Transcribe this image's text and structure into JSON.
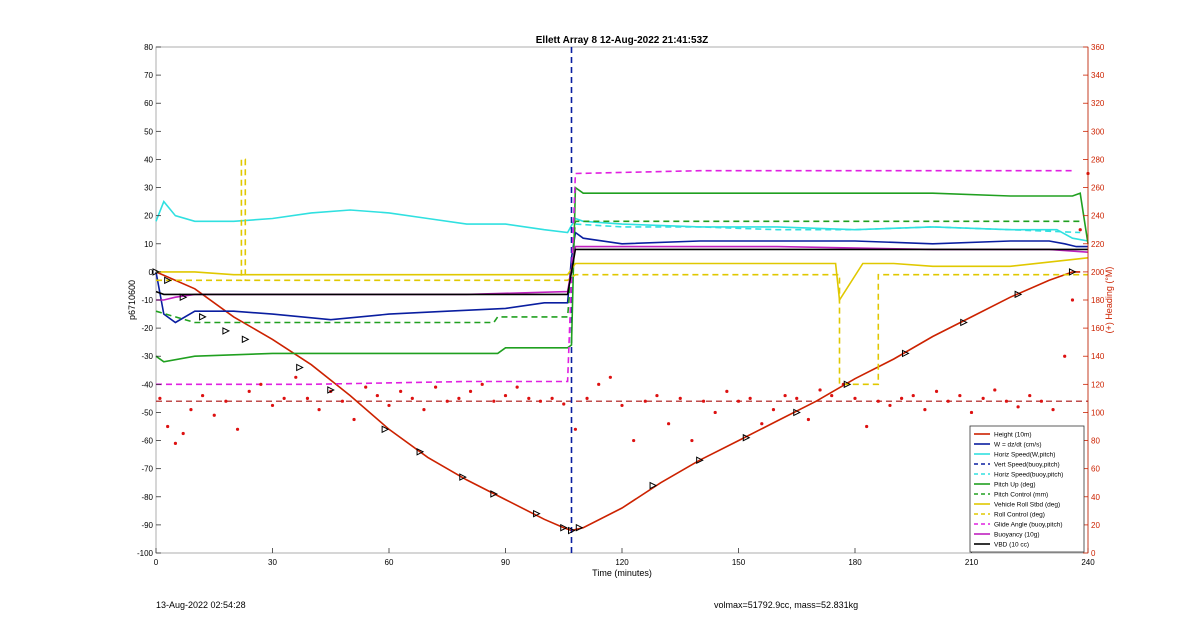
{
  "footer": {
    "timestamp": "13-Aug-2022 02:54:28",
    "mass_info": "volmax=51792.9cc, mass=52.831kg"
  },
  "chart_data": {
    "type": "line",
    "title": "Ellett Array 8 12-Aug-2022 21:41:53Z",
    "xlabel": "Time (minutes)",
    "ylabel": "p6710600",
    "ylabel_right": "(+) Heading (°M)",
    "xlim": [
      0,
      240
    ],
    "ylim": [
      -100,
      80
    ],
    "ylim_right": [
      0,
      360
    ],
    "xticks": [
      0,
      30,
      60,
      90,
      120,
      150,
      180,
      210,
      240
    ],
    "yticks": [
      -100,
      -90,
      -80,
      -70,
      -60,
      -50,
      -40,
      -30,
      -20,
      -10,
      0,
      10,
      20,
      30,
      40,
      50,
      60,
      70,
      80
    ],
    "yticks_right": [
      0,
      20,
      40,
      60,
      80,
      100,
      120,
      140,
      160,
      180,
      200,
      220,
      240,
      260,
      280,
      300,
      320,
      340,
      360
    ],
    "grid": false,
    "legend_position": "lower-right",
    "colors": {
      "height": "#cc2200",
      "vert_speed": "#0a1ea0",
      "horiz": "#30e0e0",
      "pitch": "#20a020",
      "roll": "#e0c800",
      "glide": "#e020e0",
      "buoy": "#c020c0",
      "vbd": "#000000",
      "heading": "#dd1111"
    },
    "series": [
      {
        "name": "Height (10m)",
        "style": "solid",
        "color": "#cc2200",
        "x": [
          0,
          10,
          20,
          30,
          40,
          50,
          60,
          70,
          80,
          90,
          100,
          105,
          107,
          110,
          120,
          130,
          140,
          150,
          160,
          170,
          180,
          190,
          200,
          210,
          220,
          230,
          234,
          236,
          238
        ],
        "y": [
          0,
          -6,
          -16,
          -24,
          -33,
          -44,
          -56,
          -66,
          -74,
          -81,
          -88,
          -91,
          -92,
          -91,
          -84,
          -75,
          -67,
          -60,
          -53,
          -46,
          -38,
          -31,
          -23,
          -16,
          -9,
          -3,
          -1,
          0,
          0
        ]
      },
      {
        "name": "W = dz/dt (cm/s)",
        "style": "solid",
        "color": "#0a1ea0",
        "x": [
          0,
          2,
          5,
          10,
          20,
          30,
          45,
          60,
          75,
          90,
          100,
          106,
          107,
          108,
          110,
          120,
          140,
          160,
          180,
          200,
          220,
          230,
          234,
          237,
          240
        ],
        "y": [
          0,
          -15,
          -18,
          -14,
          -14,
          -15,
          -17,
          -15,
          -14,
          -13,
          -11,
          -11,
          5,
          14,
          12,
          10,
          11,
          11,
          11,
          10,
          11,
          11,
          10,
          9,
          9
        ]
      },
      {
        "name": "Horiz Speed(W,pitch)",
        "style": "solid",
        "color": "#30e0e0",
        "x": [
          0,
          2,
          5,
          10,
          20,
          30,
          40,
          50,
          60,
          70,
          80,
          90,
          100,
          106,
          108,
          110,
          120,
          140,
          160,
          180,
          200,
          220,
          232,
          236,
          240
        ],
        "y": [
          18,
          25,
          20,
          18,
          18,
          19,
          21,
          22,
          21,
          19,
          17,
          17,
          15,
          14,
          19,
          18,
          17,
          16,
          16,
          15,
          16,
          15,
          15,
          12,
          11
        ]
      },
      {
        "name": "Vert Speed(buoy,pitch)",
        "style": "dashed",
        "color": "#0a1ea0",
        "x": [
          107,
          107
        ],
        "y": [
          -100,
          80
        ]
      },
      {
        "name": "Horiz Speed(buoy,pitch)",
        "style": "dashed",
        "color": "#30e0e0",
        "x": [
          108,
          120,
          140,
          160,
          180,
          200,
          220,
          238
        ],
        "y": [
          17,
          16,
          16,
          15,
          15,
          16,
          15,
          14
        ]
      },
      {
        "name": "Pitch Up (deg)",
        "style": "solid",
        "color": "#20a020",
        "x": [
          0,
          2,
          10,
          30,
          60,
          88,
          90,
          100,
          106,
          107,
          108,
          110,
          120,
          140,
          160,
          180,
          200,
          220,
          236,
          238,
          240
        ],
        "y": [
          -30,
          -32,
          -30,
          -29,
          -29,
          -29,
          -27,
          -27,
          -27,
          -26,
          30,
          28,
          28,
          28,
          28,
          28,
          28,
          27,
          27,
          28,
          10
        ]
      },
      {
        "name": "Pitch Control (mm)",
        "style": "dashed",
        "color": "#20a020",
        "x": [
          0,
          5,
          10,
          87,
          88,
          106,
          108,
          238
        ],
        "y": [
          -14,
          -16,
          -18,
          -18,
          -16,
          -16,
          18,
          18
        ]
      },
      {
        "name": "Vehicle Roll Stbd (deg)",
        "style": "solid",
        "color": "#e0c800",
        "x": [
          0,
          10,
          20,
          40,
          60,
          80,
          100,
          106,
          108,
          120,
          140,
          160,
          175,
          176,
          182,
          186,
          190,
          200,
          220,
          240
        ],
        "y": [
          0,
          0,
          -1,
          -1,
          -1,
          -1,
          -1,
          -1,
          3,
          3,
          3,
          3,
          3,
          -10,
          3,
          3,
          3,
          2,
          2,
          5
        ]
      },
      {
        "name": "Roll Control (deg)",
        "style": "dashed",
        "color": "#e0c800",
        "x": [
          0,
          22,
          22,
          23,
          23,
          106,
          108,
          175,
          176,
          176,
          186,
          186,
          240
        ],
        "y": [
          -3,
          -3,
          40,
          40,
          -3,
          -3,
          -1,
          -1,
          -1,
          -40,
          -40,
          -1,
          -1
        ]
      },
      {
        "name": "Glide Angle (buoy,pitch)",
        "style": "dashed",
        "color": "#e020e0",
        "x": [
          0,
          10,
          40,
          80,
          106,
          108,
          140,
          180,
          220,
          236
        ],
        "y": [
          -40,
          -40,
          -40,
          -39,
          -39,
          35,
          36,
          36,
          36,
          36
        ]
      },
      {
        "name": "Buoyancy (10g)",
        "style": "solid",
        "color": "#c020c0",
        "x": [
          0,
          2,
          5,
          10,
          40,
          80,
          106,
          108,
          120,
          160,
          200,
          230,
          240
        ],
        "y": [
          -10,
          -10,
          -9,
          -8,
          -8,
          -8,
          -7,
          9,
          9,
          9,
          8,
          8,
          7
        ]
      },
      {
        "name": "VBD (10 cc)",
        "style": "solid",
        "color": "#000000",
        "x": [
          0,
          2,
          10,
          40,
          80,
          106,
          108,
          120,
          160,
          200,
          235,
          240
        ],
        "y": [
          -7,
          -8,
          -8,
          -8,
          -8,
          -8,
          8,
          8,
          8,
          8,
          8,
          8
        ]
      }
    ],
    "heading": {
      "axis": "right",
      "style": "dots",
      "color": "#dd1111",
      "x": [
        1,
        3,
        5,
        7,
        9,
        12,
        15,
        18,
        21,
        24,
        27,
        30,
        33,
        36,
        39,
        42,
        45,
        48,
        51,
        54,
        57,
        60,
        63,
        66,
        69,
        72,
        75,
        78,
        81,
        84,
        87,
        90,
        93,
        96,
        99,
        102,
        105,
        108,
        111,
        114,
        117,
        120,
        123,
        126,
        129,
        132,
        135,
        138,
        141,
        144,
        147,
        150,
        153,
        156,
        159,
        162,
        165,
        168,
        171,
        174,
        177,
        180,
        183,
        186,
        189,
        192,
        195,
        198,
        201,
        204,
        207,
        210,
        213,
        216,
        219,
        222,
        225,
        228,
        231,
        234,
        236,
        238,
        240
      ],
      "y": [
        110,
        90,
        78,
        85,
        102,
        112,
        98,
        108,
        88,
        115,
        120,
        105,
        110,
        125,
        110,
        102,
        115,
        108,
        95,
        118,
        112,
        105,
        115,
        110,
        102,
        118,
        108,
        110,
        115,
        120,
        108,
        112,
        118,
        110,
        108,
        110,
        106,
        88,
        110,
        120,
        125,
        105,
        80,
        108,
        112,
        92,
        110,
        80,
        108,
        100,
        115,
        108,
        110,
        92,
        102,
        112,
        110,
        95,
        116,
        112,
        120,
        110,
        90,
        108,
        105,
        110,
        112,
        102,
        115,
        108,
        112,
        100,
        110,
        116,
        108,
        104,
        112,
        108,
        102,
        140,
        180,
        230,
        270
      ]
    },
    "reference_lines": [
      {
        "axis": "right",
        "value": 108,
        "style": "dashed",
        "color": "#aa1111"
      }
    ],
    "annotation_markers": {
      "x": [
        0,
        3,
        7,
        12,
        18,
        23,
        37,
        45,
        59,
        68,
        79,
        87,
        98,
        105,
        107,
        109,
        128,
        140,
        152,
        165,
        178,
        193,
        208,
        222,
        236
      ],
      "y": [
        0,
        -3,
        -9,
        -16,
        -21,
        -24,
        -34,
        -42,
        -56,
        -64,
        -73,
        -79,
        -86,
        -91,
        -92,
        -91,
        -76,
        -67,
        -59,
        -50,
        -40,
        -29,
        -18,
        -8,
        0
      ]
    }
  }
}
